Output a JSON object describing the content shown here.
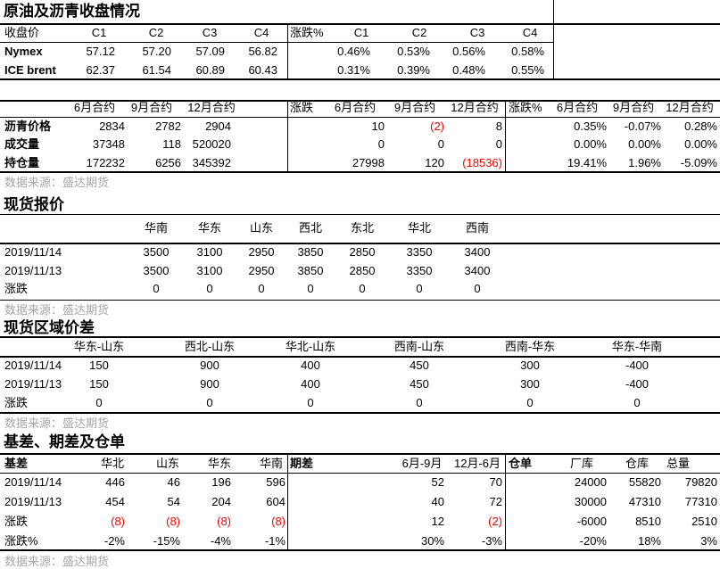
{
  "section1": {
    "title": "原油及沥青收盘情况",
    "header": [
      "收盘价",
      "C1",
      "C2",
      "C3",
      "C4",
      "涨跌%",
      "C1",
      "C2",
      "C3",
      "C4"
    ],
    "rows": [
      [
        "Nymex",
        "57.12",
        "57.20",
        "57.09",
        "56.82",
        "",
        "0.46%",
        "0.53%",
        "0.56%",
        "0.58%"
      ],
      [
        "ICE brent",
        "62.37",
        "61.54",
        "60.89",
        "60.43",
        "",
        "0.31%",
        "0.39%",
        "0.48%",
        "0.55%"
      ]
    ]
  },
  "section2": {
    "header": [
      "",
      "6月合约",
      "9月合约",
      "12月合约",
      "涨跌",
      "6月合约",
      "9月合约",
      "12月合约",
      "涨跌%",
      "6月合约",
      "9月合约",
      "12月合约"
    ],
    "rows": [
      [
        "沥青价格",
        "2834",
        "2782",
        "2904",
        "",
        "10",
        "(2)",
        "8",
        "",
        "0.35%",
        "-0.07%",
        "0.28%"
      ],
      [
        "成交量",
        "37348",
        "118",
        "520020",
        "",
        "0",
        "0",
        "0",
        "",
        "0.00%",
        "0.00%",
        "0.00%"
      ],
      [
        "持仓量",
        "172232",
        "6256",
        "345392",
        "",
        "27998",
        "120",
        "(18536)",
        "",
        "19.41%",
        "1.96%",
        "-5.09%"
      ]
    ],
    "source": "数据来源：盛达期货"
  },
  "section3": {
    "title": "现货报价",
    "header": [
      "",
      "华南",
      "华东",
      "山东",
      "西北",
      "东北",
      "华北",
      "西南"
    ],
    "rows": [
      [
        "2019/11/14",
        "3500",
        "3100",
        "2950",
        "3850",
        "2850",
        "3350",
        "3400"
      ],
      [
        "2019/11/13",
        "3500",
        "3100",
        "2950",
        "3850",
        "2850",
        "3350",
        "3400"
      ],
      [
        "涨跌",
        "0",
        "0",
        "0",
        "0",
        "0",
        "0",
        "0"
      ]
    ],
    "source": "数据来源：盛达期货"
  },
  "section4": {
    "title": "现货区域价差",
    "header": [
      "",
      "华东-山东",
      "西北-山东",
      "华北-山东",
      "西南-山东",
      "西南-华东",
      "华东-华南"
    ],
    "rows": [
      [
        "2019/11/14",
        "150",
        "900",
        "400",
        "450",
        "300",
        "-400"
      ],
      [
        "2019/11/13",
        "150",
        "900",
        "400",
        "450",
        "300",
        "-400"
      ],
      [
        "涨跌",
        "0",
        "0",
        "0",
        "0",
        "0",
        "0"
      ]
    ],
    "source": "数据来源：盛达期货"
  },
  "section5": {
    "title": "基差、期差及仓单",
    "header": [
      "基差",
      "华北",
      "山东",
      "华东",
      "华南",
      "期差",
      "6月-9月",
      "12月-6月",
      "仓单",
      "厂库",
      "仓库",
      "总量"
    ],
    "rows": [
      [
        "2019/11/14",
        "446",
        "46",
        "196",
        "596",
        "",
        "52",
        "70",
        "",
        "24000",
        "55820",
        "79820"
      ],
      [
        "2019/11/13",
        "454",
        "54",
        "204",
        "604",
        "",
        "40",
        "72",
        "",
        "30000",
        "47310",
        "77310"
      ],
      [
        "涨跌",
        "(8)",
        "(8)",
        "(8)",
        "(8)",
        "",
        "12",
        "(2)",
        "",
        "-6000",
        "8510",
        "2510"
      ],
      [
        "涨跌%",
        "-2%",
        "-15%",
        "-4%",
        "-1%",
        "",
        "30%",
        "-3%",
        "",
        "-20%",
        "18%",
        "3%"
      ]
    ],
    "source": "数据来源：盛达期货"
  },
  "colors": {
    "negative": "#ff0000",
    "source_text": "#a6a6a6"
  }
}
